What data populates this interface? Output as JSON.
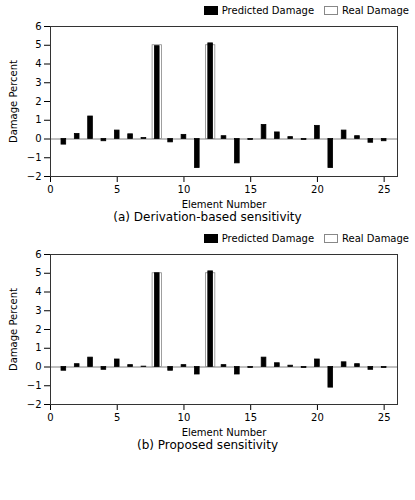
{
  "chart_data": [
    {
      "type": "bar",
      "title": "(a) Derivation-based sensitivity",
      "x": [
        1,
        2,
        3,
        4,
        5,
        6,
        7,
        8,
        9,
        10,
        11,
        12,
        13,
        14,
        15,
        16,
        17,
        18,
        19,
        20,
        21,
        22,
        23,
        24,
        25
      ],
      "series": [
        {
          "name": "Predicted Damage",
          "color": "#000000",
          "values": [
            -0.3,
            0.27,
            1.2,
            -0.12,
            0.45,
            0.25,
            0.05,
            4.95,
            -0.18,
            0.22,
            -1.55,
            5.1,
            0.15,
            -1.3,
            -0.05,
            0.75,
            0.35,
            0.1,
            -0.05,
            0.7,
            -1.55,
            0.45,
            0.15,
            -0.2,
            -0.12
          ]
        },
        {
          "name": "Real Damage",
          "color": "#ffffff",
          "values": [
            0,
            0,
            0,
            0,
            0,
            0,
            0,
            5.0,
            0,
            0,
            0,
            5.0,
            0,
            0,
            0,
            0,
            0,
            0,
            0,
            0,
            0,
            0,
            0,
            0,
            0
          ]
        }
      ],
      "xlabel": "Element Number",
      "ylabel": "Damage Percent",
      "xlim": [
        0,
        26
      ],
      "xticks": [
        0,
        5,
        10,
        15,
        20,
        25
      ],
      "ylim": [
        -2,
        6
      ],
      "yticks": [
        -2,
        -1,
        0,
        1,
        2,
        3,
        4,
        5,
        6
      ],
      "legend": "upper right"
    },
    {
      "type": "bar",
      "title": "(b) Proposed sensitivity",
      "x": [
        1,
        2,
        3,
        4,
        5,
        6,
        7,
        8,
        9,
        10,
        11,
        12,
        13,
        14,
        15,
        16,
        17,
        18,
        19,
        20,
        21,
        22,
        23,
        24,
        25
      ],
      "series": [
        {
          "name": "Predicted Damage",
          "color": "#000000",
          "values": [
            -0.2,
            0.15,
            0.5,
            -0.15,
            0.4,
            0.1,
            0.02,
            5.0,
            -0.2,
            0.1,
            -0.4,
            5.1,
            0.1,
            -0.4,
            -0.05,
            0.5,
            0.2,
            0.07,
            -0.05,
            0.4,
            -1.1,
            0.25,
            0.15,
            -0.15,
            -0.05
          ]
        },
        {
          "name": "Real Damage",
          "color": "#ffffff",
          "values": [
            0,
            0,
            0,
            0,
            0,
            0,
            0,
            5.0,
            0,
            0,
            0,
            5.0,
            0,
            0,
            0,
            0,
            0,
            0,
            0,
            0,
            0,
            0,
            0,
            0,
            0
          ]
        }
      ],
      "xlabel": "Element Number",
      "ylabel": "Damage Percent",
      "xlim": [
        0,
        26
      ],
      "xticks": [
        0,
        5,
        10,
        15,
        20,
        25
      ],
      "ylim": [
        -2,
        6
      ],
      "yticks": [
        -2,
        -1,
        0,
        1,
        2,
        3,
        4,
        5,
        6
      ],
      "legend": "upper right"
    }
  ]
}
